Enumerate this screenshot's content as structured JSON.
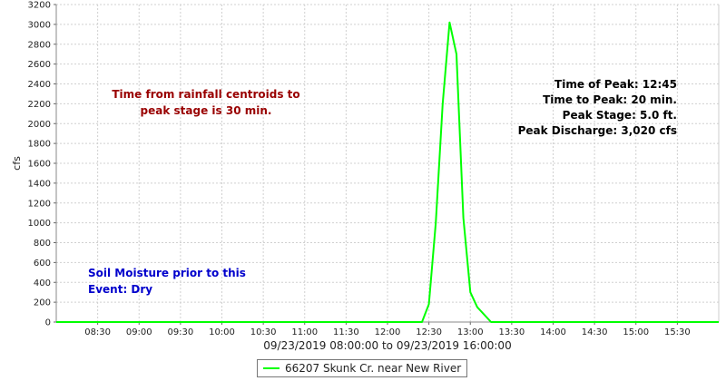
{
  "chart_data": {
    "type": "line",
    "title": "",
    "xlabel": "09/23/2019 08:00:00 to 09/23/2019 16:00:00",
    "ylabel": "cfs",
    "x_range": [
      "08:00",
      "16:00"
    ],
    "ylim": [
      0,
      3200
    ],
    "x_ticks": [
      "08:30",
      "09:00",
      "09:30",
      "10:00",
      "10:30",
      "11:00",
      "11:30",
      "12:00",
      "12:30",
      "13:00",
      "13:30",
      "14:00",
      "14:30",
      "15:00",
      "15:30"
    ],
    "y_ticks": [
      0,
      200,
      400,
      600,
      800,
      1000,
      1200,
      1400,
      1600,
      1800,
      2000,
      2200,
      2400,
      2600,
      2800,
      3000,
      3200
    ],
    "grid": true,
    "legend_position": "bottom",
    "series": [
      {
        "name": "66207 Skunk Cr. near New River",
        "color": "#00ff00",
        "x": [
          "08:00",
          "12:20",
          "12:25",
          "12:30",
          "12:35",
          "12:40",
          "12:45",
          "12:50",
          "12:55",
          "13:00",
          "13:05",
          "13:15",
          "16:00"
        ],
        "values": [
          0,
          0,
          0,
          180,
          1000,
          2200,
          3020,
          2700,
          1050,
          300,
          150,
          0,
          0
        ]
      }
    ],
    "annotations": [
      {
        "id": "rainfall",
        "lines": [
          "Time from rainfall centroids to",
          "peak stage is 30 min."
        ],
        "color": "#990000",
        "align": "center"
      },
      {
        "id": "soil",
        "lines": [
          "Soil Moisture prior to this",
          "Event: Dry"
        ],
        "color": "#0000cc",
        "align": "left"
      },
      {
        "id": "stats",
        "lines": [
          "Time of Peak: 12:45",
          "Time to Peak: 20 min.",
          "Peak Stage: 5.0 ft.",
          "Peak Discharge: 3,020 cfs"
        ],
        "color": "#000000",
        "align": "right"
      }
    ]
  }
}
